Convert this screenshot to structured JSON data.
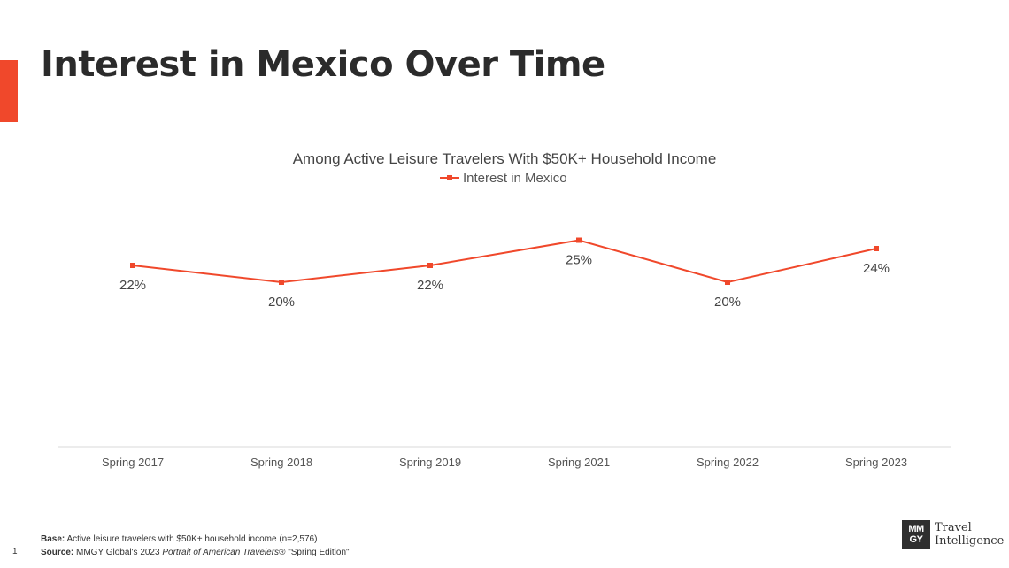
{
  "slide": {
    "title": "Interest in Mexico Over Time",
    "page_number": "1"
  },
  "footer": {
    "base_label": "Base:",
    "base_text": " Active leisure travelers with $50K+ household income (n=2,576)",
    "source_label": "Source:",
    "source_text_pre": " MMGY Global's 2023 ",
    "source_text_italic": "Portrait of American Travelers",
    "source_text_post": "® \"Spring Edition\""
  },
  "logo": {
    "mark_line1": "MM",
    "mark_line2": "GY",
    "text_line1": "Travel",
    "text_line2": "Intelligence"
  },
  "colors": {
    "accent": "#f0482b",
    "series": "#f0482b",
    "axis": "#d9d9d9"
  },
  "chart_data": {
    "type": "line",
    "title": "Among Active Leisure Travelers With $50K+ Household Income",
    "categories": [
      "Spring 2017",
      "Spring 2018",
      "Spring 2019",
      "Spring 2021",
      "Spring 2022",
      "Spring 2023"
    ],
    "series": [
      {
        "name": "Interest in Mexico",
        "values": [
          22,
          20,
          22,
          25,
          20,
          24
        ],
        "labels": [
          "22%",
          "20%",
          "22%",
          "25%",
          "20%",
          "24%"
        ]
      }
    ],
    "ylim": [
      0,
      50
    ],
    "grid": false,
    "legend": "top-center",
    "data_labels": true
  }
}
